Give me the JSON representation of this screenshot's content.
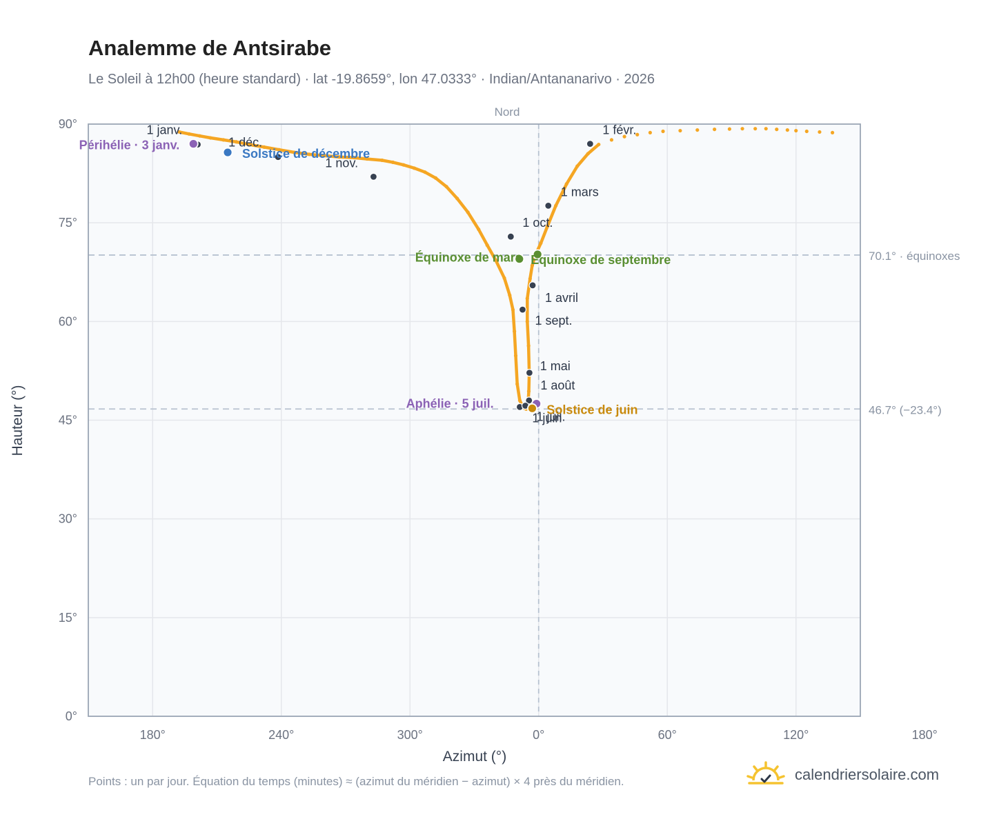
{
  "title": "Analemme de Antsirabe",
  "subtitle": "Le Soleil à 12h00 (heure standard) · lat -19.8659°, lon 47.0333° · Indian/Antananarivo · 2026",
  "footnote": "Points : un par jour. Équation du temps (minutes) ≈ (azimut du méridien − azimut) × 4 près du méridien.",
  "brand": "calendriersolaire.com",
  "colors": {
    "curve": "#f5a623",
    "month_marker": "#374151",
    "solstice_dec": "#3a78c2",
    "solstice_jun": "#c98a0c",
    "equinox": "#5a8f32",
    "apsis": "#8b62b5",
    "grid": "#e5e7eb",
    "reference_line": "#b7c2d0",
    "plot_bg": "#f8fafc"
  },
  "chart_data": {
    "type": "scatter",
    "xlabel": "Azimut (°)",
    "ylabel": "Hauteur (°)",
    "meridian_label": "Nord",
    "x_axis": {
      "unwrapped_range": [
        150,
        510
      ],
      "ticks": [
        180,
        240,
        300,
        360,
        420,
        480,
        540
      ],
      "tick_labels": [
        "180°",
        "240°",
        "300°",
        "0°",
        "60°",
        "120°",
        "180°"
      ]
    },
    "y_axis": {
      "range": [
        0,
        90
      ],
      "ticks": [
        0,
        15,
        30,
        45,
        60,
        75,
        90
      ],
      "tick_labels": [
        "0°",
        "15°",
        "30°",
        "45°",
        "60°",
        "75°",
        "90°"
      ]
    },
    "reference_lines": [
      {
        "y": 70.1,
        "label": "70.1° · équinoxes"
      },
      {
        "y": 46.7,
        "label": "46.7° (−23.4°)"
      }
    ],
    "daily_path": [
      [
        192.5,
        88.8
      ],
      [
        197,
        88.5
      ],
      [
        202,
        88.2
      ],
      [
        207,
        87.9
      ],
      [
        213,
        87.6
      ],
      [
        219,
        87.3
      ],
      [
        225,
        86.9
      ],
      [
        232,
        86.5
      ],
      [
        239,
        86.1
      ],
      [
        246,
        85.7
      ],
      [
        253,
        85.4
      ],
      [
        260,
        85.2
      ],
      [
        267,
        85.0
      ],
      [
        274,
        84.9
      ],
      [
        280,
        84.7
      ],
      [
        287,
        84.5
      ],
      [
        292,
        84.2
      ],
      [
        297,
        83.8
      ],
      [
        302,
        83.3
      ],
      [
        307,
        82.7
      ],
      [
        312,
        81.8
      ],
      [
        317,
        80.5
      ],
      [
        322,
        78.7
      ],
      [
        327,
        76.6
      ],
      [
        332,
        74.0
      ],
      [
        336,
        71.6
      ],
      [
        340,
        69.3
      ],
      [
        344,
        66.6
      ],
      [
        346.5,
        64.0
      ],
      [
        348,
        61.8
      ],
      [
        348.7,
        58.5
      ],
      [
        349.3,
        54.8
      ],
      [
        350,
        50.5
      ],
      [
        351.2,
        48.0
      ],
      [
        352.8,
        46.9
      ],
      [
        354.2,
        46.7
      ],
      [
        355.0,
        47.4
      ],
      [
        355.4,
        49.4
      ],
      [
        355.6,
        52.2
      ],
      [
        355.3,
        56.3
      ],
      [
        354.7,
        60.0
      ],
      [
        354.7,
        63.5
      ],
      [
        356.0,
        66.5
      ],
      [
        357.0,
        68.5
      ],
      [
        358.6,
        70.2
      ],
      [
        361,
        71.9
      ],
      [
        364,
        74.4
      ],
      [
        368,
        77.6
      ],
      [
        373,
        80.9
      ],
      [
        378,
        83.6
      ],
      [
        383,
        85.5
      ],
      [
        388,
        86.9
      ],
      [
        394,
        87.6
      ],
      [
        400,
        88.1
      ],
      [
        406,
        88.4
      ],
      [
        412,
        88.7
      ],
      [
        418,
        88.9
      ],
      [
        426,
        89.0
      ],
      [
        434,
        89.1
      ],
      [
        442,
        89.2
      ],
      [
        449,
        89.25
      ],
      [
        455,
        89.3
      ],
      [
        461,
        89.3
      ],
      [
        466,
        89.3
      ],
      [
        471,
        89.2
      ],
      [
        476,
        89.1
      ],
      [
        480,
        89.0
      ],
      [
        485,
        88.9
      ],
      [
        491,
        88.8
      ],
      [
        497,
        88.7
      ]
    ],
    "month_markers": [
      {
        "label": "1 janv.",
        "x": 201,
        "y": 86.9,
        "dx": -74,
        "dy": -15
      },
      {
        "label": "1 févr.",
        "x": 384,
        "y": 87.0,
        "dx": 18,
        "dy": -14
      },
      {
        "label": "1 mars",
        "x": 364.5,
        "y": 77.6,
        "dx": 18,
        "dy": -14
      },
      {
        "label": "1 avril",
        "x": 357.2,
        "y": 65.5,
        "dx": 18,
        "dy": 24
      },
      {
        "label": "1 mai",
        "x": 355.5,
        "y": 48.0,
        "dx": 16,
        "dy": -44
      },
      {
        "label": "1 juin",
        "x": 351.2,
        "y": 47.0,
        "dx": 18,
        "dy": 22
      },
      {
        "label": "1 juil.",
        "x": 353.8,
        "y": 47.2,
        "dx": 16,
        "dy": 22
      },
      {
        "label": "1 août",
        "x": 355.7,
        "y": 52.2,
        "dx": 16,
        "dy": 24
      },
      {
        "label": "1 sept.",
        "x": 352.5,
        "y": 61.8,
        "dx": 18,
        "dy": 22
      },
      {
        "label": "1 oct.",
        "x": 347.0,
        "y": 72.9,
        "dx": 17,
        "dy": -14
      },
      {
        "label": "1 nov.",
        "x": 283.0,
        "y": 82.0,
        "dx": -70,
        "dy": -14
      },
      {
        "label": "1 déc.",
        "x": 238.5,
        "y": 85.0,
        "dx": -72,
        "dy": -15
      }
    ],
    "events": [
      {
        "label": "Périhélie · 3 janv.",
        "x": 199,
        "y": 87.0,
        "color": "apsis",
        "anchor": "end",
        "dx": -20,
        "dy": 8
      },
      {
        "label": "Solstice de décembre",
        "x": 215,
        "y": 85.7,
        "color": "solstice_dec",
        "anchor": "start",
        "dx": 21,
        "dy": 8
      },
      {
        "label": "Équinoxe de mars",
        "x": 351.0,
        "y": 69.5,
        "color": "equinox",
        "anchor": "end",
        "dx": 4,
        "dy": 4
      },
      {
        "label": "Équinoxe de septembre",
        "x": 359.5,
        "y": 70.2,
        "color": "equinox",
        "anchor": "start",
        "dx": -10,
        "dy": 14
      },
      {
        "label": "Aphélie · 5 juil.",
        "x": 359.0,
        "y": 47.5,
        "color": "apsis",
        "anchor": "end",
        "dx": -62,
        "dy": 6
      },
      {
        "label": "Solstice de juin",
        "x": 357.0,
        "y": 46.8,
        "color": "solstice_jun",
        "anchor": "start",
        "dx": 21,
        "dy": 8
      }
    ]
  }
}
